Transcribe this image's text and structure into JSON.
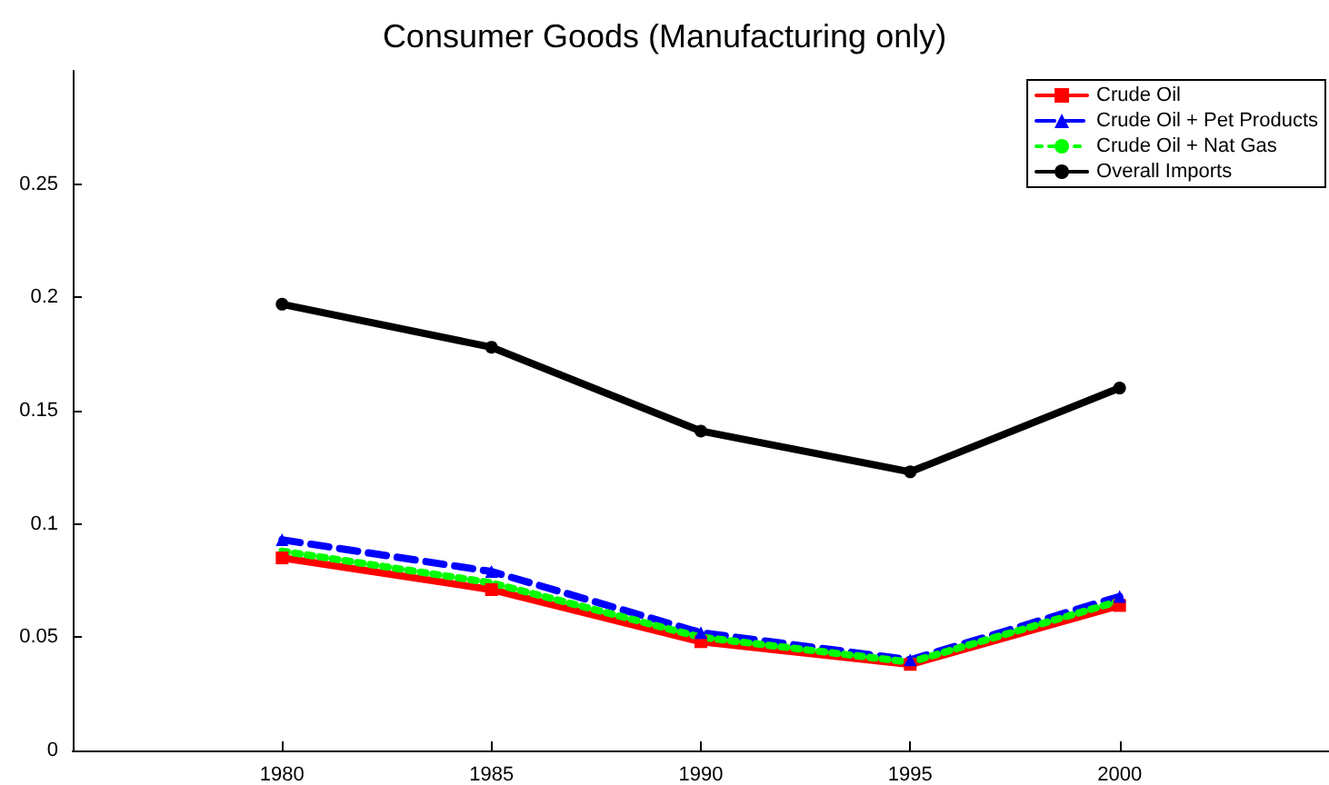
{
  "chart_data": {
    "type": "line",
    "title": "Consumer Goods (Manufacturing only)",
    "x": [
      1980,
      1985,
      1990,
      1995,
      2000
    ],
    "xlim": [
      1975,
      2005
    ],
    "xticks": [
      1980,
      1985,
      1990,
      1995,
      2000
    ],
    "ylim": [
      0,
      0.3
    ],
    "yticks": [
      0,
      0.05,
      0.1,
      0.15,
      0.2,
      0.25
    ],
    "grid": false,
    "legend": "top right",
    "series": [
      {
        "name": "Crude Oil",
        "color": "#ff0000",
        "marker": "square",
        "line_style": "solid",
        "values": [
          0.085,
          0.071,
          0.048,
          0.038,
          0.064
        ]
      },
      {
        "name": "Crude Oil + Pet Products",
        "color": "#0000ff",
        "marker": "triangle",
        "line_style": "dashed",
        "values": [
          0.093,
          0.079,
          0.052,
          0.04,
          0.068
        ]
      },
      {
        "name": "Crude Oil + Nat Gas",
        "color": "#00ff00",
        "marker": "none",
        "line_style": "dotted",
        "values": [
          0.088,
          0.074,
          0.05,
          0.039,
          0.066
        ]
      },
      {
        "name": "Overall Imports",
        "color": "#000000",
        "marker": "circle",
        "line_style": "solid",
        "values": [
          0.197,
          0.178,
          0.141,
          0.123,
          0.16
        ]
      }
    ]
  }
}
